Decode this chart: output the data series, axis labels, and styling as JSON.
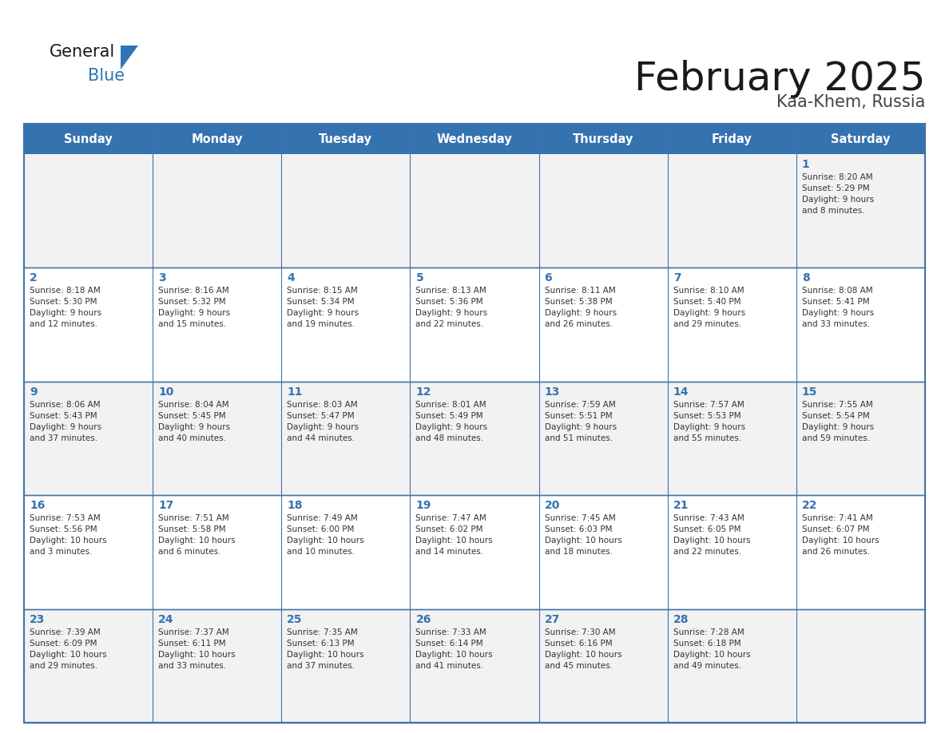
{
  "title": "February 2025",
  "subtitle": "Kaa-Khem, Russia",
  "days_of_week": [
    "Sunday",
    "Monday",
    "Tuesday",
    "Wednesday",
    "Thursday",
    "Friday",
    "Saturday"
  ],
  "header_bg": "#3572B0",
  "header_text": "#FFFFFF",
  "cell_bg_white": "#FFFFFF",
  "cell_bg_grey": "#F2F2F2",
  "border_color": "#4472A8",
  "day_number_color": "#3572B0",
  "cell_text_color": "#333333",
  "title_color": "#1a1a1a",
  "subtitle_color": "#444444",
  "logo_general_color": "#1a1a1a",
  "logo_blue_color": "#2E75B6",
  "weeks": [
    [
      {
        "day": null,
        "text": ""
      },
      {
        "day": null,
        "text": ""
      },
      {
        "day": null,
        "text": ""
      },
      {
        "day": null,
        "text": ""
      },
      {
        "day": null,
        "text": ""
      },
      {
        "day": null,
        "text": ""
      },
      {
        "day": 1,
        "text": "Sunrise: 8:20 AM\nSunset: 5:29 PM\nDaylight: 9 hours\nand 8 minutes."
      }
    ],
    [
      {
        "day": 2,
        "text": "Sunrise: 8:18 AM\nSunset: 5:30 PM\nDaylight: 9 hours\nand 12 minutes."
      },
      {
        "day": 3,
        "text": "Sunrise: 8:16 AM\nSunset: 5:32 PM\nDaylight: 9 hours\nand 15 minutes."
      },
      {
        "day": 4,
        "text": "Sunrise: 8:15 AM\nSunset: 5:34 PM\nDaylight: 9 hours\nand 19 minutes."
      },
      {
        "day": 5,
        "text": "Sunrise: 8:13 AM\nSunset: 5:36 PM\nDaylight: 9 hours\nand 22 minutes."
      },
      {
        "day": 6,
        "text": "Sunrise: 8:11 AM\nSunset: 5:38 PM\nDaylight: 9 hours\nand 26 minutes."
      },
      {
        "day": 7,
        "text": "Sunrise: 8:10 AM\nSunset: 5:40 PM\nDaylight: 9 hours\nand 29 minutes."
      },
      {
        "day": 8,
        "text": "Sunrise: 8:08 AM\nSunset: 5:41 PM\nDaylight: 9 hours\nand 33 minutes."
      }
    ],
    [
      {
        "day": 9,
        "text": "Sunrise: 8:06 AM\nSunset: 5:43 PM\nDaylight: 9 hours\nand 37 minutes."
      },
      {
        "day": 10,
        "text": "Sunrise: 8:04 AM\nSunset: 5:45 PM\nDaylight: 9 hours\nand 40 minutes."
      },
      {
        "day": 11,
        "text": "Sunrise: 8:03 AM\nSunset: 5:47 PM\nDaylight: 9 hours\nand 44 minutes."
      },
      {
        "day": 12,
        "text": "Sunrise: 8:01 AM\nSunset: 5:49 PM\nDaylight: 9 hours\nand 48 minutes."
      },
      {
        "day": 13,
        "text": "Sunrise: 7:59 AM\nSunset: 5:51 PM\nDaylight: 9 hours\nand 51 minutes."
      },
      {
        "day": 14,
        "text": "Sunrise: 7:57 AM\nSunset: 5:53 PM\nDaylight: 9 hours\nand 55 minutes."
      },
      {
        "day": 15,
        "text": "Sunrise: 7:55 AM\nSunset: 5:54 PM\nDaylight: 9 hours\nand 59 minutes."
      }
    ],
    [
      {
        "day": 16,
        "text": "Sunrise: 7:53 AM\nSunset: 5:56 PM\nDaylight: 10 hours\nand 3 minutes."
      },
      {
        "day": 17,
        "text": "Sunrise: 7:51 AM\nSunset: 5:58 PM\nDaylight: 10 hours\nand 6 minutes."
      },
      {
        "day": 18,
        "text": "Sunrise: 7:49 AM\nSunset: 6:00 PM\nDaylight: 10 hours\nand 10 minutes."
      },
      {
        "day": 19,
        "text": "Sunrise: 7:47 AM\nSunset: 6:02 PM\nDaylight: 10 hours\nand 14 minutes."
      },
      {
        "day": 20,
        "text": "Sunrise: 7:45 AM\nSunset: 6:03 PM\nDaylight: 10 hours\nand 18 minutes."
      },
      {
        "day": 21,
        "text": "Sunrise: 7:43 AM\nSunset: 6:05 PM\nDaylight: 10 hours\nand 22 minutes."
      },
      {
        "day": 22,
        "text": "Sunrise: 7:41 AM\nSunset: 6:07 PM\nDaylight: 10 hours\nand 26 minutes."
      }
    ],
    [
      {
        "day": 23,
        "text": "Sunrise: 7:39 AM\nSunset: 6:09 PM\nDaylight: 10 hours\nand 29 minutes."
      },
      {
        "day": 24,
        "text": "Sunrise: 7:37 AM\nSunset: 6:11 PM\nDaylight: 10 hours\nand 33 minutes."
      },
      {
        "day": 25,
        "text": "Sunrise: 7:35 AM\nSunset: 6:13 PM\nDaylight: 10 hours\nand 37 minutes."
      },
      {
        "day": 26,
        "text": "Sunrise: 7:33 AM\nSunset: 6:14 PM\nDaylight: 10 hours\nand 41 minutes."
      },
      {
        "day": 27,
        "text": "Sunrise: 7:30 AM\nSunset: 6:16 PM\nDaylight: 10 hours\nand 45 minutes."
      },
      {
        "day": 28,
        "text": "Sunrise: 7:28 AM\nSunset: 6:18 PM\nDaylight: 10 hours\nand 49 minutes."
      },
      {
        "day": null,
        "text": ""
      }
    ]
  ]
}
